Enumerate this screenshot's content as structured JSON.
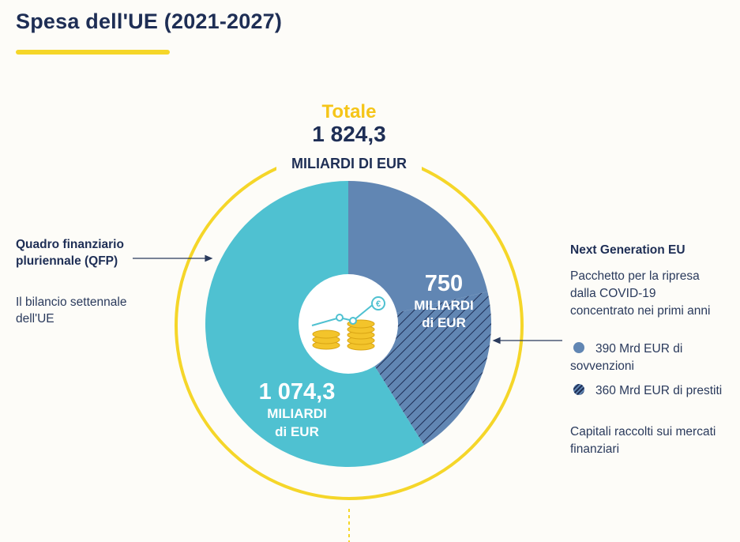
{
  "title": "Spesa dell'UE (2021-2027)",
  "colors": {
    "accent_yellow": "#f5d629",
    "qfp": "#4fc1d1",
    "ngeu": "#6186b3",
    "navy": "#1e2e55",
    "coin": "#f3c42b"
  },
  "qfp_panel": {
    "title": "Quadro finanziario pluriennale (QFP)",
    "description": "Il bilancio settennale dell'UE"
  },
  "ngeu_panel": {
    "title": "Next Generation EU",
    "description": "Pacchetto per la ripresa dalla COVID-19 concentrato nei primi anni",
    "legend_grants": "390 Mrd EUR di sovvenzioni",
    "legend_loans": "360 Mrd EUR di prestiti",
    "markets": "Capitali raccolti sui mercati finanziari"
  },
  "center_icon": {
    "name": "coins-growth-icon",
    "symbol": "€"
  },
  "chart_data": {
    "type": "pie",
    "title": "Totale",
    "total": {
      "label": "Totale",
      "value_label": "1 824,3",
      "unit": "MILIARDI DI EUR",
      "value": 1824.3
    },
    "slices": [
      {
        "name": "Quadro finanziario pluriennale (QFP)",
        "value": 1074.3,
        "value_label": "1 074,3",
        "unit_line1": "MILIARDI",
        "unit_line2": "di EUR",
        "color": "#4fc1d1"
      },
      {
        "name": "Next Generation EU",
        "value": 750,
        "value_label": "750",
        "unit_line1": "MILIARDI",
        "unit_line2": "di EUR",
        "color": "#6186b3",
        "sub": [
          {
            "name": "sovvenzioni",
            "value": 390,
            "pattern": "solid"
          },
          {
            "name": "prestiti",
            "value": 360,
            "pattern": "hatched"
          }
        ]
      }
    ]
  }
}
